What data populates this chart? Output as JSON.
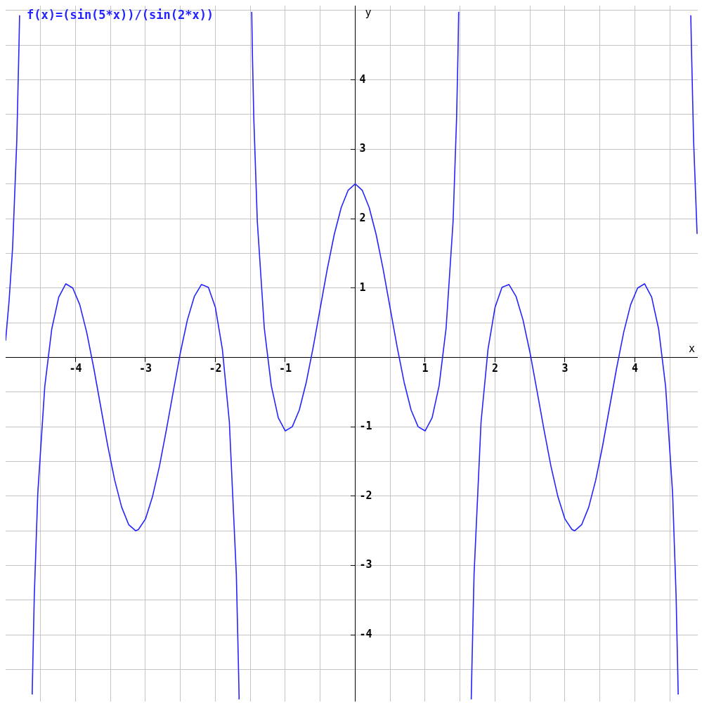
{
  "chart_data": {
    "type": "line",
    "title": "f(x)=(sin(5*x))/(sin(2*x))",
    "xlabel": "x",
    "ylabel": "y",
    "x": [
      -5,
      -4.95,
      -4.9,
      -4.84,
      -4.81,
      -4.8,
      -4.71,
      -4.62,
      -4.61,
      -4.59,
      -4.54,
      -4.44,
      -4.34,
      -4.24,
      -4.14,
      -4.04,
      -3.94,
      -3.84,
      -3.74,
      -3.64,
      -3.54,
      -3.44,
      -3.34,
      -3.24,
      -3.14,
      -3.1,
      -3,
      -2.9,
      -2.8,
      -2.7,
      -2.6,
      -2.5,
      -2.4,
      -2.3,
      -2.2,
      -2.1,
      -2,
      -1.9,
      -1.8,
      -1.7,
      -1.67,
      -1.66,
      -1.57,
      -1.48,
      -1.47,
      -1.45,
      -1.4,
      -1.3,
      -1.2,
      -1.1,
      -1,
      -0.9,
      -0.8,
      -0.7,
      -0.6,
      -0.5,
      -0.4,
      -0.3,
      -0.2,
      -0.1,
      0,
      0.1,
      0.2,
      0.3,
      0.4,
      0.5,
      0.6,
      0.7,
      0.8,
      0.9,
      1,
      1.1,
      1.2,
      1.3,
      1.4,
      1.45,
      1.47,
      1.48,
      1.57,
      1.66,
      1.67,
      1.7,
      1.8,
      1.9,
      2,
      2.1,
      2.2,
      2.3,
      2.4,
      2.5,
      2.6,
      2.7,
      2.8,
      2.9,
      3,
      3.1,
      3.14,
      3.24,
      3.34,
      3.44,
      3.54,
      3.64,
      3.74,
      3.84,
      3.94,
      4.04,
      4.14,
      4.24,
      4.34,
      4.44,
      4.54,
      4.59,
      4.61,
      4.62,
      4.71,
      4.8,
      4.81,
      4.84,
      4.89
    ],
    "series": [
      {
        "color": "#2424ff",
        "values": [
          0.24,
          0.82,
          1.58,
          3.13,
          4.44,
          4.93,
          null,
          -4.86,
          -4.37,
          -3.44,
          -1.96,
          -0.42,
          0.41,
          0.87,
          1.06,
          1,
          0.76,
          0.36,
          -0.15,
          -0.71,
          -1.27,
          -1.77,
          -2.16,
          -2.41,
          -2.5,
          -2.48,
          -2.33,
          -2.01,
          -1.57,
          -1.04,
          -0.48,
          0.07,
          0.54,
          0.88,
          1.05,
          1.01,
          0.72,
          0.12,
          -0.93,
          -3.13,
          -4.44,
          -4.93,
          null,
          4.98,
          4.37,
          3.44,
          1.96,
          0.42,
          -0.41,
          -0.87,
          -1.06,
          -1,
          -0.76,
          -0.36,
          0.15,
          0.71,
          1.27,
          1.77,
          2.16,
          2.41,
          2.5,
          2.41,
          2.16,
          1.77,
          1.27,
          0.71,
          0.15,
          -0.36,
          -0.76,
          -1,
          -1.06,
          -0.87,
          -0.41,
          0.42,
          1.96,
          3.44,
          4.37,
          4.98,
          null,
          -4.93,
          -4.44,
          -3.13,
          -0.93,
          0.12,
          0.72,
          1.01,
          1.05,
          0.88,
          0.54,
          0.07,
          -0.48,
          -1.04,
          -1.57,
          -2.01,
          -2.33,
          -2.48,
          -2.5,
          -2.41,
          -2.16,
          -1.77,
          -1.27,
          -0.71,
          -0.15,
          0.36,
          0.76,
          1,
          1.06,
          0.87,
          0.41,
          -0.42,
          -1.96,
          -3.44,
          -4.37,
          -4.86,
          null,
          4.93,
          4.44,
          3.13,
          1.78
        ]
      }
    ],
    "xlim": [
      -5,
      4.9
    ],
    "ylim": [
      -4.96,
      5.07
    ],
    "xticks": [
      {
        "value": -4.5,
        "label": null
      },
      -4,
      {
        "value": -3.5,
        "label": null
      },
      -3,
      {
        "value": -2.5,
        "label": null
      },
      -2,
      {
        "value": -1.5,
        "label": null
      },
      -1,
      {
        "value": -0.5,
        "label": null
      },
      {
        "value": 0,
        "label": null
      },
      {
        "value": 0.5,
        "label": null
      },
      1,
      {
        "value": 1.5,
        "label": null
      },
      2,
      {
        "value": 2.5,
        "label": null
      },
      3,
      {
        "value": 3.5,
        "label": null
      },
      4,
      {
        "value": 4.5,
        "label": null
      }
    ],
    "yticks": [
      {
        "value": -4.5,
        "label": null
      },
      -4,
      {
        "value": -3.5,
        "label": null
      },
      -3,
      {
        "value": -2.5,
        "label": null
      },
      -2,
      {
        "value": -1.5,
        "label": null
      },
      -1,
      {
        "value": -0.5,
        "label": null
      },
      {
        "value": 0,
        "label": null
      },
      {
        "value": 0.5,
        "label": null
      },
      1,
      {
        "value": 1.5,
        "label": null
      },
      2,
      {
        "value": 2.5,
        "label": null
      },
      3,
      {
        "value": 3.5,
        "label": null
      },
      4,
      {
        "value": 4.5,
        "label": null
      },
      {
        "value": 5,
        "label": null
      }
    ],
    "grid": true,
    "marker": "none",
    "line_style": "solid"
  }
}
